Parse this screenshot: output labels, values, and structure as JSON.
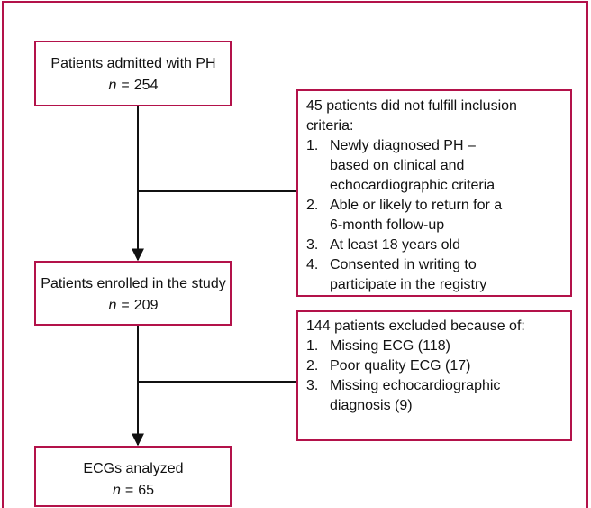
{
  "nodes": [
    {
      "label": "Patients admitted with PH",
      "variable": "n",
      "relation": "=",
      "count": 254
    },
    {
      "label": "Patients enrolled in the study",
      "variable": "n",
      "relation": "=",
      "count": 209
    },
    {
      "label": "ECGs analyzed",
      "variable": "n",
      "relation": "=",
      "count": 65
    }
  ],
  "exclusions": [
    {
      "heading": [
        "45 patients did not fulfill inclusion",
        "criteria:"
      ],
      "items": [
        {
          "number": "1.",
          "lines": [
            "Newly diagnosed PH –",
            "based on clinical and",
            "echocardiographic criteria"
          ]
        },
        {
          "number": "2.",
          "lines": [
            "Able or likely to return for a",
            "6-month follow-up"
          ]
        },
        {
          "number": "3.",
          "lines": [
            "At least 18 years old"
          ]
        },
        {
          "number": "4.",
          "lines": [
            "Consented in writing to",
            "participate in the registry"
          ]
        }
      ]
    },
    {
      "heading": [
        "144 patients excluded because of:"
      ],
      "items": [
        {
          "number": "1.",
          "lines": [
            "Missing ECG (118)"
          ]
        },
        {
          "number": "2.",
          "lines": [
            "Poor quality ECG (17)"
          ]
        },
        {
          "number": "3.",
          "lines": [
            "Missing echocardiographic",
            "diagnosis (9)"
          ]
        }
      ]
    }
  ]
}
